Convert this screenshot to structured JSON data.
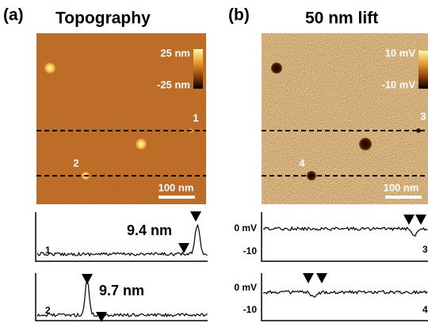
{
  "panels": [
    {
      "label": "(a)",
      "title": "Topography",
      "colorbar": {
        "max": "25 nm",
        "min": "-25 nm"
      },
      "line_labels": [
        "1",
        "2"
      ],
      "scale_bar": "100 nm",
      "profiles": [
        {
          "line": "1",
          "annotation": "9.4 nm"
        },
        {
          "line": "2",
          "annotation": "9.7 nm"
        }
      ]
    },
    {
      "label": "(b)",
      "title": "50 nm lift",
      "colorbar": {
        "max": "10 mV",
        "min": "-10 mV"
      },
      "line_labels": [
        "3",
        "4"
      ],
      "scale_bar": "100 nm",
      "profiles": [
        {
          "line": "3",
          "ticks": [
            "0 mV",
            "-10"
          ]
        },
        {
          "line": "4",
          "ticks": [
            "0 mV",
            "-10"
          ]
        }
      ]
    }
  ]
}
